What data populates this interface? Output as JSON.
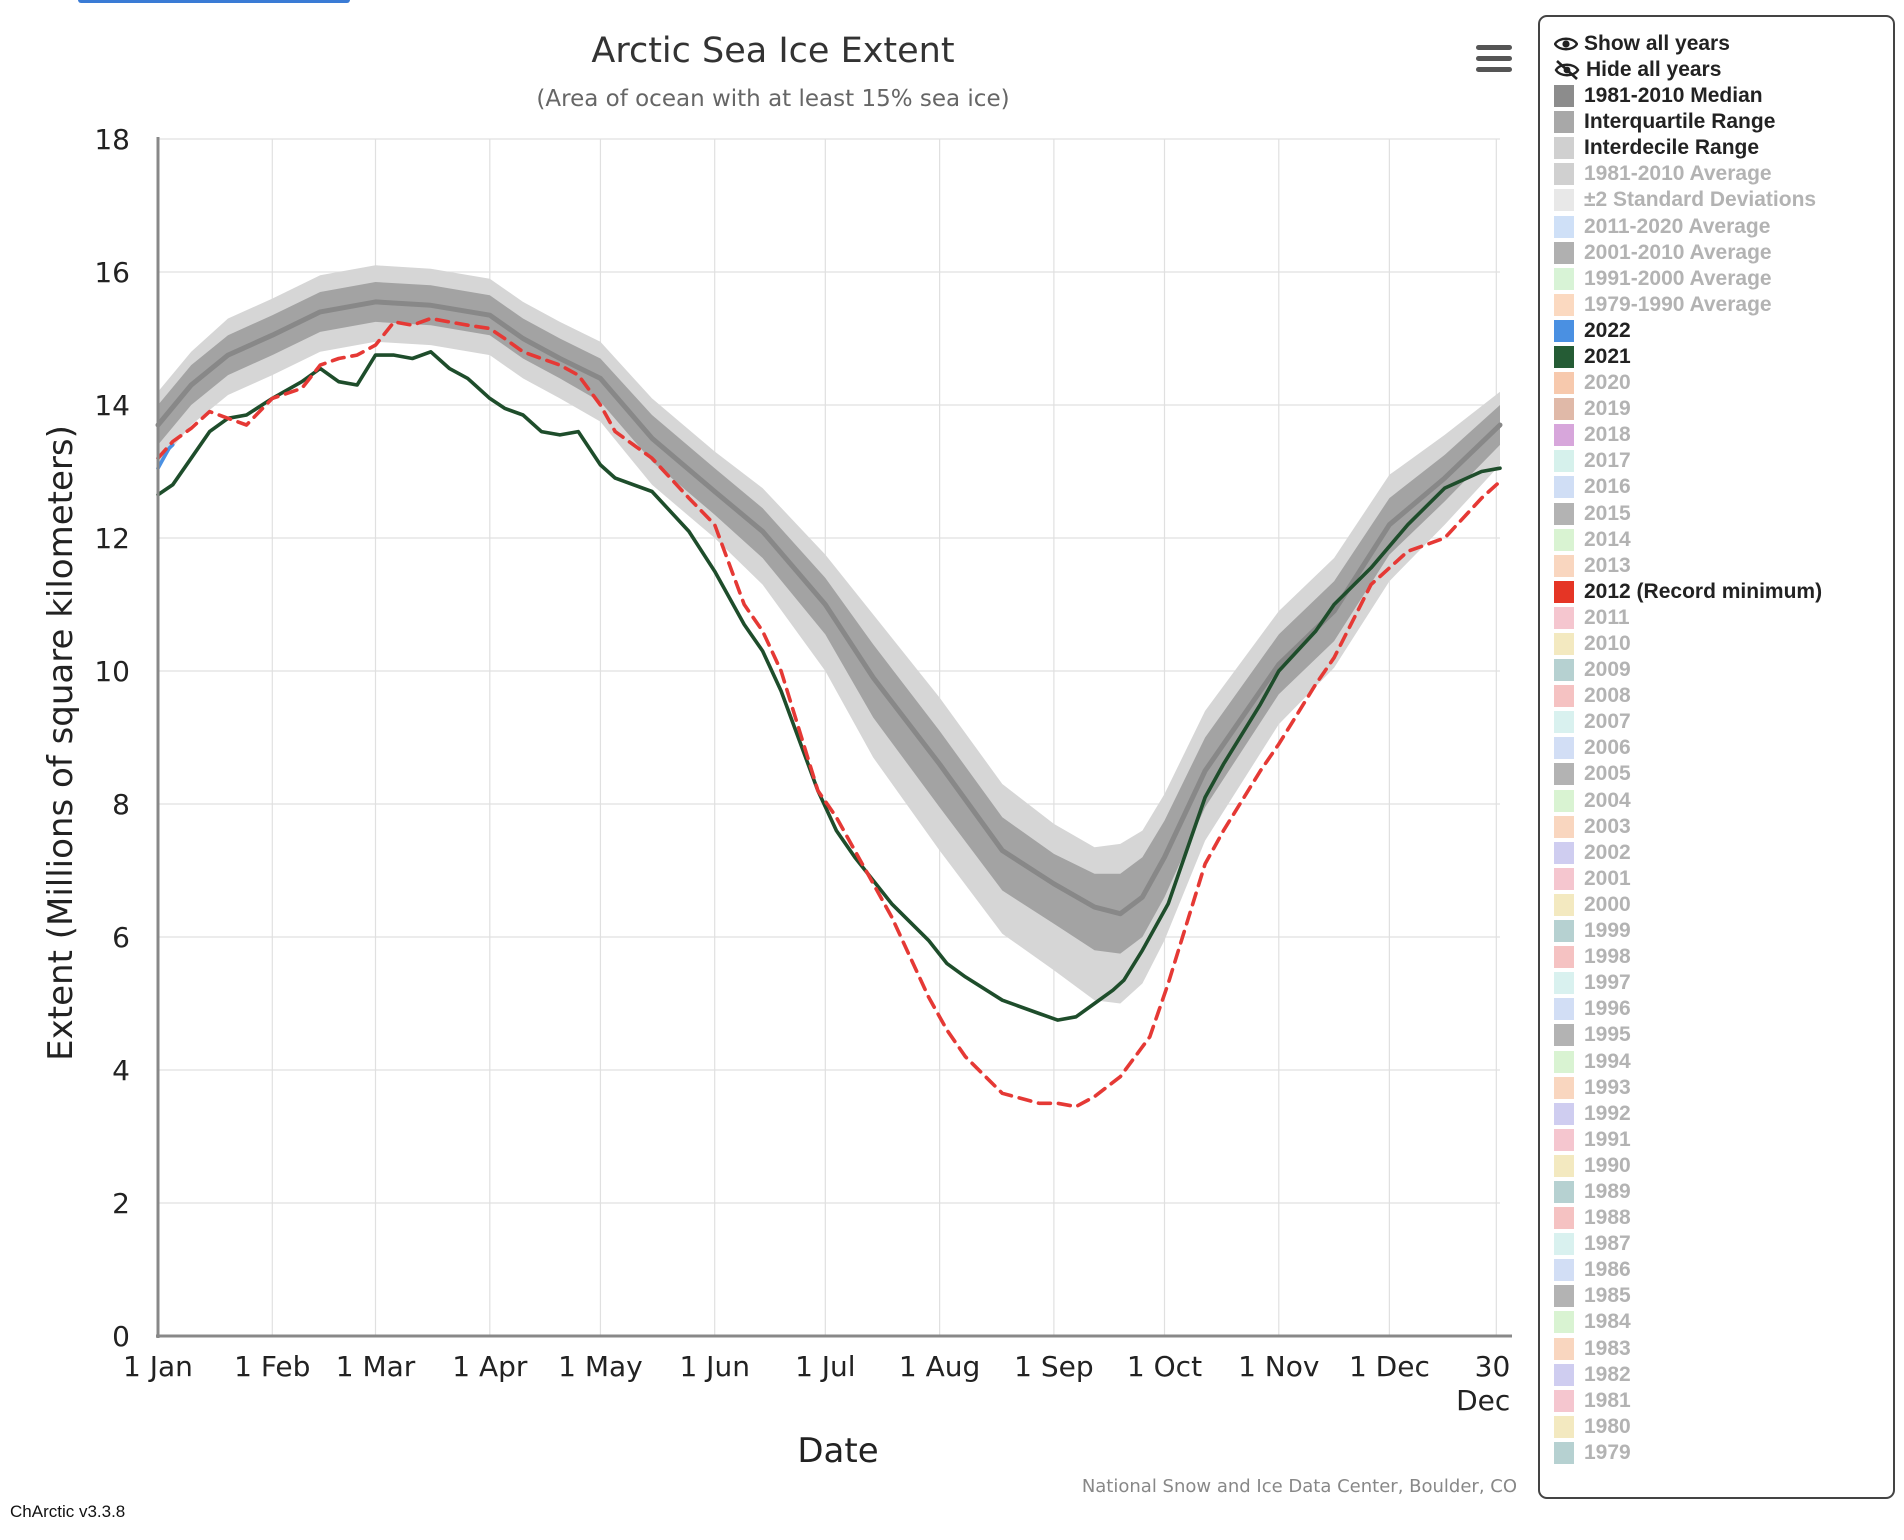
{
  "chart_data": {
    "type": "line",
    "title": "Arctic Sea Ice Extent",
    "subtitle": "(Area of ocean with at least 15% sea ice)",
    "xlabel": "Date",
    "ylabel": "Extent (Millions of square kilometers)",
    "credit": "National Snow and Ice Data Center, Boulder, CO",
    "ylim": [
      0,
      18
    ],
    "yticks": [
      0,
      2,
      4,
      6,
      8,
      10,
      12,
      14,
      16,
      18
    ],
    "xlim": [
      1,
      365
    ],
    "xticks": [
      {
        "day": 1,
        "label": "1 Jan"
      },
      {
        "day": 32,
        "label": "1 Feb"
      },
      {
        "day": 60,
        "label": "1 Mar"
      },
      {
        "day": 91,
        "label": "1 Apr"
      },
      {
        "day": 121,
        "label": "1 May"
      },
      {
        "day": 152,
        "label": "1 Jun"
      },
      {
        "day": 182,
        "label": "1 Jul"
      },
      {
        "day": 213,
        "label": "1 Aug"
      },
      {
        "day": 244,
        "label": "1 Sep"
      },
      {
        "day": 274,
        "label": "1 Oct"
      },
      {
        "day": 305,
        "label": "1 Nov"
      },
      {
        "day": 335,
        "label": "1 Dec"
      },
      {
        "day": 364,
        "label": "30",
        "label2": "Dec"
      }
    ],
    "grid": true,
    "legend_position": "right",
    "series": [
      {
        "name": "1981-2010 Median",
        "kind": "line",
        "color": "#888888",
        "x": [
          1,
          10,
          20,
          32,
          45,
          60,
          75,
          91,
          100,
          110,
          121,
          135,
          152,
          165,
          182,
          195,
          213,
          230,
          244,
          255,
          262,
          268,
          274,
          285,
          305,
          320,
          335,
          350,
          365
        ],
        "values": [
          13.7,
          14.3,
          14.75,
          15.05,
          15.4,
          15.55,
          15.5,
          15.35,
          15.0,
          14.7,
          14.4,
          13.5,
          12.7,
          12.1,
          11.0,
          9.9,
          8.6,
          7.3,
          6.8,
          6.45,
          6.35,
          6.6,
          7.2,
          8.5,
          10.1,
          10.9,
          12.2,
          12.9,
          13.7
        ]
      },
      {
        "name": "Interquartile Range",
        "kind": "band",
        "color": "#a3a3a3",
        "x": [
          1,
          10,
          20,
          32,
          45,
          60,
          75,
          91,
          100,
          110,
          121,
          135,
          152,
          165,
          182,
          195,
          213,
          230,
          244,
          255,
          262,
          268,
          274,
          285,
          305,
          320,
          335,
          350,
          365
        ],
        "low": [
          13.4,
          14.0,
          14.45,
          14.75,
          15.1,
          15.25,
          15.2,
          15.05,
          14.7,
          14.4,
          14.05,
          13.15,
          12.35,
          11.7,
          10.55,
          9.3,
          7.95,
          6.7,
          6.2,
          5.8,
          5.75,
          6.0,
          6.6,
          7.95,
          9.65,
          10.45,
          11.75,
          12.55,
          13.4
        ],
        "high": [
          14.0,
          14.6,
          15.05,
          15.35,
          15.7,
          15.85,
          15.8,
          15.65,
          15.3,
          15.0,
          14.7,
          13.85,
          13.05,
          12.45,
          11.4,
          10.4,
          9.1,
          7.8,
          7.25,
          6.95,
          6.95,
          7.2,
          7.75,
          9.0,
          10.55,
          11.35,
          12.6,
          13.25,
          14.0
        ]
      },
      {
        "name": "Interdecile Range",
        "kind": "band",
        "color": "#d6d6d6",
        "x": [
          1,
          10,
          20,
          32,
          45,
          60,
          75,
          91,
          100,
          110,
          121,
          135,
          152,
          165,
          182,
          195,
          213,
          230,
          244,
          255,
          262,
          268,
          274,
          285,
          305,
          320,
          335,
          350,
          365
        ],
        "low": [
          13.1,
          13.7,
          14.15,
          14.45,
          14.8,
          14.95,
          14.9,
          14.75,
          14.4,
          14.1,
          13.75,
          12.8,
          12.0,
          11.3,
          10.0,
          8.7,
          7.3,
          6.05,
          5.5,
          5.05,
          5.0,
          5.3,
          5.95,
          7.45,
          9.2,
          10.05,
          11.35,
          12.2,
          13.1
        ],
        "high": [
          14.2,
          14.8,
          15.3,
          15.6,
          15.95,
          16.1,
          16.05,
          15.9,
          15.55,
          15.25,
          14.95,
          14.1,
          13.3,
          12.75,
          11.75,
          10.85,
          9.6,
          8.3,
          7.7,
          7.35,
          7.4,
          7.6,
          8.15,
          9.4,
          10.9,
          11.7,
          12.95,
          13.55,
          14.2
        ]
      },
      {
        "name": "2022",
        "kind": "line",
        "color": "#4a90e2",
        "x": [
          1,
          2,
          3,
          4,
          5
        ],
        "values": [
          13.05,
          13.15,
          13.25,
          13.35,
          13.4
        ]
      },
      {
        "name": "2021",
        "kind": "line",
        "color": "#1e4d2b",
        "x": [
          1,
          5,
          10,
          15,
          20,
          25,
          32,
          40,
          45,
          50,
          55,
          60,
          65,
          70,
          75,
          80,
          85,
          91,
          95,
          100,
          105,
          110,
          115,
          121,
          125,
          135,
          145,
          152,
          160,
          165,
          170,
          180,
          185,
          190,
          200,
          210,
          215,
          220,
          230,
          240,
          245,
          250,
          255,
          260,
          263,
          268,
          275,
          285,
          290,
          300,
          305,
          315,
          320,
          330,
          340,
          350,
          360,
          365
        ],
        "values": [
          12.65,
          12.8,
          13.2,
          13.6,
          13.8,
          13.85,
          14.1,
          14.35,
          14.55,
          14.35,
          14.3,
          14.75,
          14.75,
          14.7,
          14.8,
          14.55,
          14.4,
          14.1,
          13.95,
          13.85,
          13.6,
          13.55,
          13.6,
          13.1,
          12.9,
          12.7,
          12.1,
          11.5,
          10.7,
          10.3,
          9.7,
          8.2,
          7.6,
          7.2,
          6.5,
          5.95,
          5.6,
          5.4,
          5.05,
          4.85,
          4.75,
          4.8,
          5.0,
          5.2,
          5.35,
          5.8,
          6.5,
          8.1,
          8.6,
          9.5,
          10.0,
          10.6,
          11.0,
          11.55,
          12.2,
          12.75,
          13.0,
          13.05
        ]
      },
      {
        "name": "2012 (Record minimum)",
        "kind": "line",
        "dashed": true,
        "color": "#e53935",
        "x": [
          1,
          5,
          10,
          15,
          20,
          25,
          32,
          40,
          45,
          50,
          55,
          60,
          65,
          70,
          75,
          80,
          85,
          91,
          95,
          100,
          105,
          110,
          115,
          121,
          125,
          135,
          145,
          152,
          160,
          165,
          170,
          180,
          185,
          190,
          200,
          210,
          215,
          220,
          230,
          240,
          245,
          250,
          255,
          262,
          270,
          275,
          285,
          290,
          300,
          305,
          315,
          320,
          330,
          340,
          350,
          360,
          365
        ],
        "values": [
          13.2,
          13.45,
          13.65,
          13.9,
          13.8,
          13.7,
          14.1,
          14.25,
          14.6,
          14.7,
          14.75,
          14.9,
          15.25,
          15.2,
          15.3,
          15.25,
          15.2,
          15.15,
          15.0,
          14.8,
          14.7,
          14.6,
          14.45,
          14.0,
          13.6,
          13.2,
          12.6,
          12.2,
          11.0,
          10.6,
          10.0,
          8.2,
          7.8,
          7.3,
          6.3,
          5.1,
          4.6,
          4.2,
          3.65,
          3.5,
          3.5,
          3.45,
          3.6,
          3.9,
          4.5,
          5.3,
          7.1,
          7.6,
          8.5,
          8.9,
          9.8,
          10.2,
          11.3,
          11.8,
          12.0,
          12.6,
          12.85
        ]
      }
    ]
  },
  "ui": {
    "menu_icon": "hamburger-menu-icon",
    "version": "ChArctic v3.3.8"
  },
  "legend": {
    "show_all": "Show all years",
    "hide_all": "Hide all years",
    "items": [
      {
        "label": "1981-2010 Median",
        "color": "#8c8c8c",
        "on": true
      },
      {
        "label": "Interquartile Range",
        "color": "#a8a8a8",
        "on": true
      },
      {
        "label": "Interdecile Range",
        "color": "#d0d0d0",
        "on": true
      },
      {
        "label": "1981-2010 Average",
        "color": "#d0d0d0",
        "on": false
      },
      {
        "label": "±2 Standard Deviations",
        "color": "#e8e8e8",
        "on": false
      },
      {
        "label": "2011-2020 Average",
        "color": "#cfe0f7",
        "on": false
      },
      {
        "label": "2001-2010 Average",
        "color": "#b0b0b0",
        "on": false
      },
      {
        "label": "1991-2000 Average",
        "color": "#d8f3d6",
        "on": false
      },
      {
        "label": "1979-1990 Average",
        "color": "#fbd9c0",
        "on": false
      },
      {
        "label": "2022",
        "color": "#4a90e2",
        "on": true
      },
      {
        "label": "2021",
        "color": "#255c35",
        "on": true
      },
      {
        "label": "2020",
        "color": "#f7c9ad",
        "on": false
      },
      {
        "label": "2019",
        "color": "#e0b9a8",
        "on": false
      },
      {
        "label": "2018",
        "color": "#d7a6db",
        "on": false
      },
      {
        "label": "2017",
        "color": "#d6f1ec",
        "on": false
      },
      {
        "label": "2016",
        "color": "#d0def5",
        "on": false
      },
      {
        "label": "2015",
        "color": "#b3b3b3",
        "on": false
      },
      {
        "label": "2014",
        "color": "#d9f3d2",
        "on": false
      },
      {
        "label": "2013",
        "color": "#f9d6bf",
        "on": false
      },
      {
        "label": "2012 (Record minimum)",
        "color": "#e53525",
        "on": true
      },
      {
        "label": "2011",
        "color": "#f5c6cf",
        "on": false
      },
      {
        "label": "2010",
        "color": "#f3e9c0",
        "on": false
      },
      {
        "label": "2009",
        "color": "#b6d1d1",
        "on": false
      },
      {
        "label": "2008",
        "color": "#f5c2c2",
        "on": false
      },
      {
        "label": "2007",
        "color": "#d9f1ef",
        "on": false
      },
      {
        "label": "2006",
        "color": "#d2def5",
        "on": false
      },
      {
        "label": "2005",
        "color": "#b3b3b3",
        "on": false
      },
      {
        "label": "2004",
        "color": "#d9f3d2",
        "on": false
      },
      {
        "label": "2003",
        "color": "#f9d6bf",
        "on": false
      },
      {
        "label": "2002",
        "color": "#cfcdf0",
        "on": false
      },
      {
        "label": "2001",
        "color": "#f5c6cf",
        "on": false
      },
      {
        "label": "2000",
        "color": "#f3e9c0",
        "on": false
      },
      {
        "label": "1999",
        "color": "#b6d1d1",
        "on": false
      },
      {
        "label": "1998",
        "color": "#f5c2c2",
        "on": false
      },
      {
        "label": "1997",
        "color": "#d9f1ef",
        "on": false
      },
      {
        "label": "1996",
        "color": "#d2def5",
        "on": false
      },
      {
        "label": "1995",
        "color": "#b3b3b3",
        "on": false
      },
      {
        "label": "1994",
        "color": "#d9f3d2",
        "on": false
      },
      {
        "label": "1993",
        "color": "#f9d6bf",
        "on": false
      },
      {
        "label": "1992",
        "color": "#cfcdf0",
        "on": false
      },
      {
        "label": "1991",
        "color": "#f5c6cf",
        "on": false
      },
      {
        "label": "1990",
        "color": "#f3e9c0",
        "on": false
      },
      {
        "label": "1989",
        "color": "#b6d1d1",
        "on": false
      },
      {
        "label": "1988",
        "color": "#f5c2c2",
        "on": false
      },
      {
        "label": "1987",
        "color": "#d9f1ef",
        "on": false
      },
      {
        "label": "1986",
        "color": "#d2def5",
        "on": false
      },
      {
        "label": "1985",
        "color": "#b3b3b3",
        "on": false
      },
      {
        "label": "1984",
        "color": "#d9f3d2",
        "on": false
      },
      {
        "label": "1983",
        "color": "#f9d6bf",
        "on": false
      },
      {
        "label": "1982",
        "color": "#cfcdf0",
        "on": false
      },
      {
        "label": "1981",
        "color": "#f5c6cf",
        "on": false
      },
      {
        "label": "1980",
        "color": "#f3e9c0",
        "on": false
      },
      {
        "label": "1979",
        "color": "#b6d1d1",
        "on": false
      }
    ]
  }
}
